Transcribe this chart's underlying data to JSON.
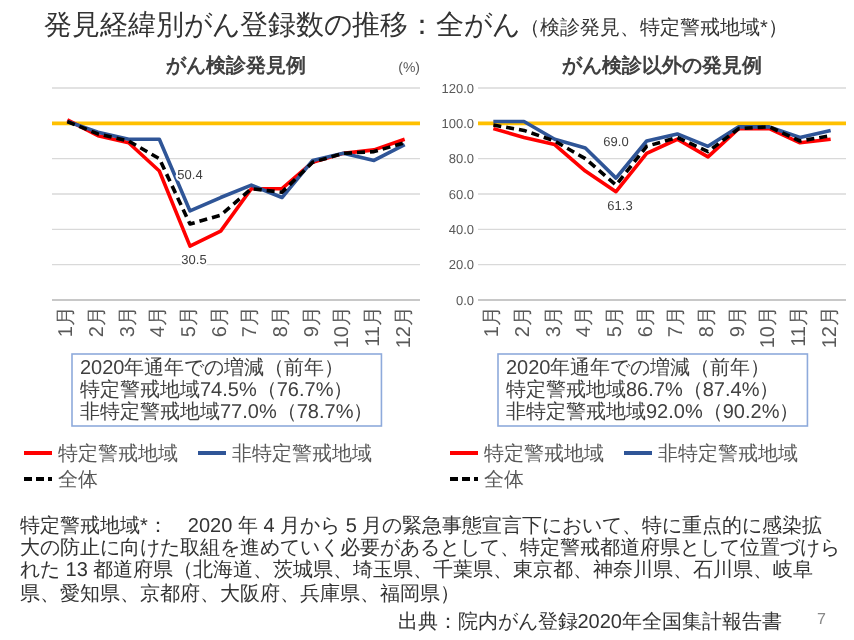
{
  "chart_data": [
    {
      "type": "other",
      "title": "発見経緯別がん登録数の推移：全がん",
      "subtitle": "（検診発見、特定警戒地域*）",
      "annotations": [
        "特定警戒地域*：　2020 年 4 月から 5 月の緊急事態宣言下において、特に重点的に感染拡大の防止に向けた取組を進めていく必要があるとして、特定警戒都道府県として位置づけられた 13 都道府県（北海道、茨城県、埼玉県、千葉県、東京都、神奈川県、石川県、岐阜県、愛知県、京都府、大阪府、兵庫県、福岡県）",
        "出典：院内がん登録2020年全国集計報告書",
        "7"
      ]
    },
    {
      "type": "line",
      "title": "がん検診発見例",
      "ylabel": "(%)",
      "categories": [
        "1月",
        "2月",
        "3月",
        "4月",
        "5月",
        "6月",
        "7月",
        "8月",
        "9月",
        "10月",
        "11月",
        "12月"
      ],
      "series": [
        {
          "name": "特定警戒地域",
          "color": "#ff0000",
          "values": [
            102,
            93,
            89,
            73,
            30.5,
            39,
            63,
            63,
            78,
            83,
            85,
            91
          ]
        },
        {
          "name": "非特定警戒地域",
          "color": "#2f5597",
          "values": [
            101,
            95,
            91,
            91,
            50.4,
            58,
            65,
            58,
            79,
            83,
            79,
            88
          ]
        },
        {
          "name": "全体",
          "color": "#000000",
          "line_style": "dashed",
          "values": [
            101,
            94,
            90,
            80,
            43,
            48,
            63,
            61,
            78,
            83,
            84,
            89
          ]
        }
      ],
      "ylim": [
        0,
        120
      ],
      "yticks": [
        0,
        20,
        40,
        60,
        80,
        100,
        120
      ],
      "tick_labels": "x",
      "grid": "y",
      "legend": "bottom",
      "ref_lines": [
        {
          "axis": "y",
          "value": 100,
          "color": "#ffc000"
        }
      ],
      "annotations": [
        {
          "text": "50.4",
          "x": "5月",
          "y": 50.4
        },
        {
          "text": "30.5",
          "x": "5月",
          "y": 30.5
        },
        "2020年通年での増減（前年）",
        "特定警戒地域74.5%（76.7%）",
        "非特定警戒地域77.0%（78.7%）"
      ]
    },
    {
      "type": "line",
      "title": "がん検診以外の発見例",
      "categories": [
        "1月",
        "2月",
        "3月",
        "4月",
        "5月",
        "6月",
        "7月",
        "8月",
        "9月",
        "10月",
        "11月",
        "12月"
      ],
      "series": [
        {
          "name": "特定警戒地域",
          "color": "#ff0000",
          "values": [
            97,
            92,
            88,
            73,
            61.3,
            83,
            91,
            81,
            97,
            97,
            89,
            91
          ]
        },
        {
          "name": "非特定警戒地域",
          "color": "#2f5597",
          "values": [
            101,
            101,
            91,
            86,
            69.0,
            90,
            94,
            87,
            98,
            98,
            92,
            96
          ]
        },
        {
          "name": "全体",
          "color": "#000000",
          "line_style": "dashed",
          "values": [
            99,
            96,
            90,
            80,
            65,
            87,
            92,
            84,
            97,
            98,
            90,
            93
          ]
        }
      ],
      "ylim": [
        0,
        120
      ],
      "yticks": [
        {
          "value": 0,
          "label": "0.0"
        },
        {
          "value": 20,
          "label": "20.0"
        },
        {
          "value": 40,
          "label": "40.0"
        },
        {
          "value": 60,
          "label": "60.0"
        },
        {
          "value": 80,
          "label": "80.0"
        },
        {
          "value": 100,
          "label": "100.0"
        },
        {
          "value": 120,
          "label": "120.0"
        }
      ],
      "grid": "y",
      "legend": "bottom",
      "ref_lines": [
        {
          "axis": "y",
          "value": 100,
          "color": "#ffc000"
        }
      ],
      "annotations": [
        {
          "text": "69.0",
          "x": "5月",
          "y": 69.0
        },
        {
          "text": "61.3",
          "x": "5月",
          "y": 61.3
        },
        "2020年通年での増減（前年）",
        "特定警戒地域86.7%（87.4%）",
        "非特定警戒地域92.0%（90.2%）"
      ]
    }
  ]
}
